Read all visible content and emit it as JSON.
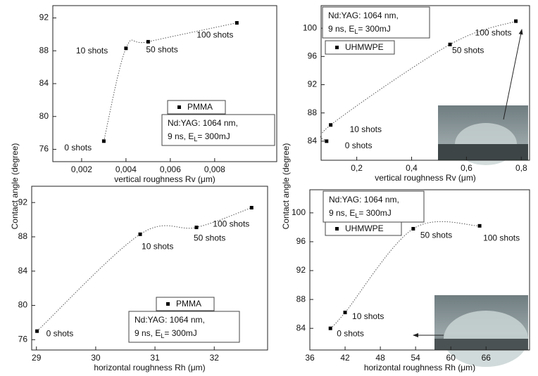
{
  "chart_data": [
    {
      "type": "scatter",
      "ylabel": "Contact angle (degree)",
      "xlabel": "vertical roughness Rv (μm)",
      "xlim": [
        0.0007,
        0.0108
      ],
      "ylim": [
        74.5,
        93.5
      ],
      "xticks": [
        {
          "value": 0.002,
          "label": "0,002"
        },
        {
          "value": 0.004,
          "label": "0,004"
        },
        {
          "value": 0.006,
          "label": "0,006"
        },
        {
          "value": 0.008,
          "label": "0,008"
        }
      ],
      "yticks": [
        76,
        80,
        84,
        88,
        92
      ],
      "x": [
        0.003,
        0.004,
        0.005,
        0.009
      ],
      "series": [
        {
          "name": "PMMA",
          "color": "#000000",
          "values": [
            77,
            88.3,
            89.1,
            91.4
          ]
        }
      ],
      "point_labels": [
        "0 shots",
        "10 shots",
        "50 shots",
        "100 shots"
      ],
      "annotation": {
        "line1": "Nd:YAG: 1064 nm,",
        "line2": "9 ns, E",
        "sub": "L",
        "line2_end": "= 300mJ"
      }
    },
    {
      "type": "scatter",
      "ylabel": "Contact angle (degree)",
      "xlabel": "vertical roughness Rv (μm)",
      "xlim": [
        0.07,
        0.83
      ],
      "ylim": [
        81.3,
        103.2
      ],
      "xticks": [
        {
          "value": 0.2,
          "label": "0,2"
        },
        {
          "value": 0.4,
          "label": "0,4"
        },
        {
          "value": 0.6,
          "label": "0,6"
        },
        {
          "value": 0.8,
          "label": "0,8"
        }
      ],
      "yticks": [
        84,
        88,
        92,
        96,
        100
      ],
      "x": [
        0.09,
        0.105,
        0.54,
        0.78
      ],
      "series": [
        {
          "name": "UHMWPE",
          "color": "#000000",
          "values": [
            84,
            86.3,
            97.7,
            101
          ]
        }
      ],
      "point_labels": [
        "0 shots",
        "10 shots",
        "50 shots",
        "100 shots"
      ],
      "annotation": {
        "line1": "Nd:YAG: 1064 nm,",
        "line2": "9 ns, E",
        "sub": "L",
        "line2_end": "= 300mJ"
      }
    },
    {
      "type": "scatter",
      "xlabel": "horizontal roughness Rh (μm)",
      "xlim": [
        28.92,
        32.9
      ],
      "ylim": [
        74.8,
        93.9
      ],
      "xticks": [
        29,
        30,
        31,
        32
      ],
      "yticks": [
        76,
        80,
        84,
        88,
        92
      ],
      "x": [
        29.01,
        30.75,
        31.7,
        32.63
      ],
      "series": [
        {
          "name": "PMMA",
          "color": "#000000",
          "values": [
            77,
            88.3,
            89.1,
            91.4
          ]
        }
      ],
      "point_labels": [
        "0 shots",
        "10 shots",
        "50 shots",
        "100 shots"
      ],
      "annotation": {
        "line1": "Nd:YAG: 1064 nm,",
        "line2": "9 ns, E",
        "sub": "L",
        "line2_end": "= 300mJ"
      }
    },
    {
      "type": "scatter",
      "xlabel": "horizontal roughness Rh (μm)",
      "xlim": [
        36,
        73.4
      ],
      "ylim": [
        81,
        103.2
      ],
      "xticks": [
        36,
        42,
        48,
        54,
        60,
        66
      ],
      "yticks": [
        84,
        88,
        92,
        96,
        100
      ],
      "x": [
        39.5,
        42,
        53.6,
        64.9
      ],
      "series": [
        {
          "name": "UHMWPE",
          "color": "#000000",
          "values": [
            84,
            86.2,
            97.8,
            98.2
          ]
        }
      ],
      "point_labels": [
        "0 shots",
        "10 shots",
        "50 shots",
        "100 shots"
      ],
      "annotation": {
        "line1": "Nd:YAG: 1064 nm,",
        "line2": "9 ns, E",
        "sub": "L",
        "line2_end": "= 300mJ"
      }
    }
  ]
}
